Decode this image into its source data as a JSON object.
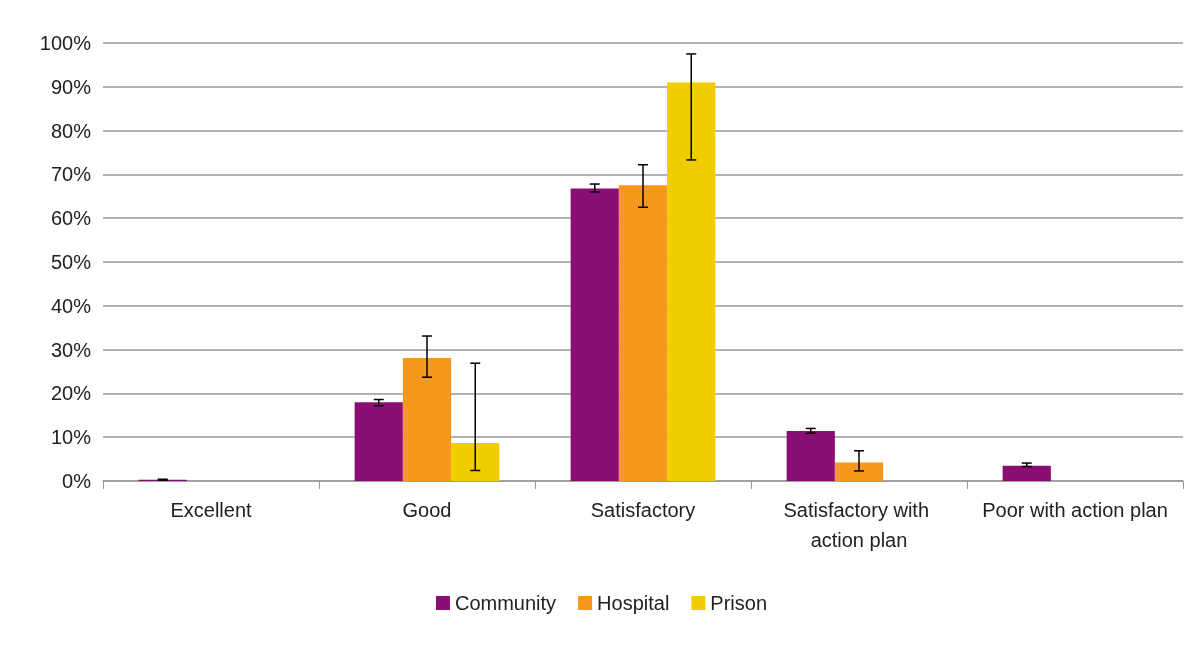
{
  "chart_data": {
    "type": "bar",
    "categories": [
      "Excellent",
      "Good",
      "Satisfactory",
      "Satisfactory with action plan",
      "Poor with action plan"
    ],
    "series": [
      {
        "name": "Community",
        "color": "#8b0f73",
        "values": [
          0.3,
          18.0,
          66.8,
          11.4,
          3.5
        ],
        "errors": [
          [
            0.2,
            0.4
          ],
          [
            17.2,
            18.6
          ],
          [
            66.0,
            67.8
          ],
          [
            10.9,
            12.0
          ],
          [
            3.3,
            4.1
          ]
        ]
      },
      {
        "name": "Hospital",
        "color": "#f7981d",
        "values": [
          0,
          28.1,
          67.5,
          4.2,
          0
        ],
        "errors": [
          null,
          [
            23.7,
            33.1
          ],
          [
            62.5,
            72.2
          ],
          [
            2.3,
            6.9
          ],
          null
        ]
      },
      {
        "name": "Prison",
        "color": "#f0cd00",
        "values": [
          0,
          8.7,
          91.0,
          0,
          0
        ],
        "errors": [
          null,
          [
            2.4,
            26.9
          ],
          [
            73.3,
            97.5
          ],
          null,
          null
        ]
      }
    ],
    "ylim": [
      0,
      100
    ],
    "yticks": [
      {
        "value": 0,
        "label": "0%"
      },
      {
        "value": 10,
        "label": "10%"
      },
      {
        "value": 20,
        "label": "20%"
      },
      {
        "value": 30,
        "label": "30%"
      },
      {
        "value": 40,
        "label": "40%"
      },
      {
        "value": 50,
        "label": "50%"
      },
      {
        "value": 60,
        "label": "60%"
      },
      {
        "value": 70,
        "label": "70%"
      },
      {
        "value": 80,
        "label": "80%"
      },
      {
        "value": 90,
        "label": "90%"
      },
      {
        "value": 100,
        "label": "100%"
      }
    ],
    "grid": "y",
    "legend": "bottom"
  }
}
